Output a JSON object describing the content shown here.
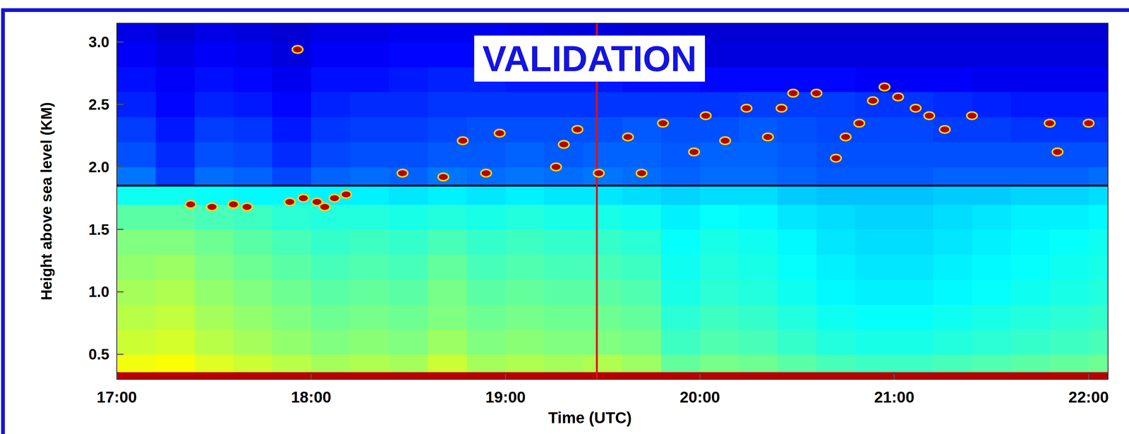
{
  "chart_data": {
    "type": "heatmap",
    "x_label": "Time (UTC)",
    "y_label": "Height above sea level (KM)",
    "xlim": [
      17,
      22.1
    ],
    "ylim": [
      0.3,
      3.15
    ],
    "xticks": [
      {
        "value": 17,
        "label": "17:00"
      },
      {
        "value": 18,
        "label": "18:00"
      },
      {
        "value": 19,
        "label": "19:00"
      },
      {
        "value": 20,
        "label": "20:00"
      },
      {
        "value": 21,
        "label": "21:00"
      },
      {
        "value": 22,
        "label": "22:00"
      }
    ],
    "yticks": [
      0.5,
      {
        "value": 1,
        "label": "1.0"
      },
      1.5,
      {
        "value": 2,
        "label": "2.0"
      },
      2.5,
      {
        "value": 3,
        "label": "3.0"
      }
    ],
    "color_range": [
      0.6,
      11.4
    ],
    "x_edges": [
      17.0,
      17.2,
      17.4,
      17.6,
      17.8,
      18.0,
      18.2,
      18.4,
      18.6,
      18.8,
      19.0,
      19.2,
      19.4,
      19.6,
      19.8,
      20.0,
      20.2,
      20.4,
      20.6,
      20.8,
      21.0,
      21.2,
      21.4,
      21.6,
      21.8,
      22.0,
      22.2
    ],
    "y_edges": [
      0.3,
      0.36,
      0.5,
      0.7,
      0.9,
      1.1,
      1.3,
      1.5,
      1.7,
      1.85,
      2.0,
      2.2,
      2.4,
      2.6,
      2.8,
      3.0,
      3.2
    ],
    "cells": [
      [
        10.8,
        10.8,
        10.8,
        10.8,
        10.8,
        10.8,
        10.8,
        10.8,
        10.8,
        10.8,
        10.8,
        10.8,
        10.8,
        10.8,
        10.8,
        10.8,
        10.8,
        10.8,
        10.8,
        10.8,
        10.8,
        10.8,
        10.8,
        10.8,
        10.8,
        10.8
      ],
      [
        7.2,
        7.3,
        7.0,
        6.8,
        6.6,
        6.4,
        6.5,
        6.4,
        6.8,
        6.4,
        6.5,
        6.4,
        6.5,
        6.3,
        5.7,
        5.9,
        5.8,
        5.6,
        5.4,
        5.3,
        5.3,
        5.4,
        5.5,
        5.6,
        5.7,
        5.8
      ],
      [
        6.8,
        6.9,
        6.6,
        6.4,
        6.2,
        6.0,
        6.1,
        6.0,
        6.3,
        6.0,
        6.1,
        6.0,
        6.0,
        5.9,
        5.3,
        5.5,
        5.4,
        5.2,
        5.0,
        4.9,
        4.9,
        5.0,
        5.1,
        5.2,
        5.3,
        5.4
      ],
      [
        6.6,
        6.7,
        6.4,
        6.2,
        6.0,
        5.8,
        5.9,
        5.8,
        6.0,
        5.8,
        5.9,
        5.8,
        5.8,
        5.7,
        5.1,
        5.3,
        5.2,
        5.0,
        4.8,
        4.7,
        4.7,
        4.8,
        4.9,
        5.0,
        5.1,
        5.2
      ],
      [
        6.4,
        6.5,
        6.2,
        6.0,
        5.8,
        5.6,
        5.7,
        5.6,
        5.9,
        5.6,
        5.7,
        5.6,
        5.6,
        5.5,
        4.9,
        5.1,
        5.0,
        4.8,
        4.6,
        4.5,
        4.5,
        4.6,
        4.7,
        4.8,
        4.9,
        5.0
      ],
      [
        6.2,
        6.3,
        6.0,
        5.8,
        5.6,
        5.4,
        5.5,
        5.4,
        5.7,
        5.4,
        5.5,
        5.4,
        5.4,
        5.3,
        4.8,
        5.0,
        4.9,
        4.7,
        4.5,
        4.4,
        4.4,
        4.5,
        4.6,
        4.7,
        4.8,
        4.9
      ],
      [
        6.0,
        6.0,
        5.8,
        5.6,
        5.4,
        5.2,
        5.3,
        5.2,
        5.4,
        5.2,
        5.3,
        5.2,
        5.2,
        5.1,
        4.7,
        4.9,
        4.8,
        4.6,
        4.4,
        4.3,
        4.3,
        4.4,
        4.5,
        4.6,
        4.7,
        4.8
      ],
      [
        5.6,
        5.6,
        5.4,
        5.3,
        5.1,
        5.0,
        5.0,
        4.9,
        5.0,
        4.9,
        5.0,
        4.9,
        4.9,
        4.8,
        4.5,
        4.7,
        4.6,
        4.4,
        4.3,
        4.2,
        4.2,
        4.3,
        4.4,
        4.5,
        4.5,
        4.6
      ],
      [
        4.8,
        4.8,
        4.7,
        4.6,
        4.6,
        4.5,
        4.5,
        4.4,
        4.5,
        4.4,
        4.5,
        4.4,
        4.4,
        4.3,
        4.2,
        4.3,
        4.3,
        4.1,
        4.0,
        4.0,
        4.0,
        4.1,
        4.1,
        4.2,
        4.2,
        4.3
      ],
      [
        3.2,
        2.6,
        3.1,
        3.0,
        2.7,
        3.0,
        3.1,
        3.0,
        3.2,
        3.1,
        3.2,
        3.1,
        3.2,
        3.1,
        3.0,
        3.1,
        3.1,
        3.0,
        2.9,
        2.9,
        2.9,
        3.0,
        3.0,
        3.0,
        3.0,
        3.1
      ],
      [
        2.8,
        2.4,
        2.8,
        2.7,
        2.4,
        2.7,
        2.8,
        2.8,
        2.9,
        2.9,
        3.0,
        2.9,
        3.0,
        3.0,
        2.9,
        3.0,
        3.0,
        2.9,
        2.8,
        2.8,
        2.8,
        2.8,
        2.8,
        2.8,
        2.8,
        2.8
      ],
      [
        2.6,
        2.2,
        2.6,
        2.5,
        2.2,
        2.5,
        2.6,
        2.6,
        2.7,
        2.8,
        2.8,
        2.8,
        2.8,
        2.9,
        2.8,
        2.8,
        2.9,
        2.8,
        2.7,
        2.7,
        2.7,
        2.6,
        2.6,
        2.5,
        2.5,
        2.5
      ],
      [
        2.3,
        2.0,
        2.3,
        2.2,
        2.0,
        2.3,
        2.4,
        2.4,
        2.5,
        2.5,
        2.5,
        2.5,
        2.5,
        2.5,
        2.5,
        2.5,
        2.6,
        2.6,
        2.6,
        2.5,
        2.5,
        2.4,
        2.3,
        2.2,
        2.2,
        2.2
      ],
      [
        2.1,
        1.9,
        2.1,
        2.0,
        1.8,
        2.1,
        2.1,
        2.2,
        2.3,
        2.3,
        2.2,
        2.2,
        2.2,
        2.1,
        2.1,
        2.0,
        2.0,
        2.0,
        2.0,
        1.9,
        1.9,
        1.9,
        1.8,
        1.8,
        1.8,
        1.8
      ],
      [
        1.9,
        1.7,
        1.9,
        1.8,
        1.6,
        1.9,
        1.9,
        2.0,
        2.0,
        2.0,
        1.9,
        1.8,
        1.8,
        1.7,
        1.6,
        1.6,
        1.6,
        1.6,
        1.6,
        1.6,
        1.6,
        1.6,
        1.6,
        1.6,
        1.6,
        1.6
      ],
      [
        1.7,
        1.5,
        1.7,
        1.6,
        1.5,
        1.7,
        1.7,
        1.8,
        1.8,
        1.8,
        1.7,
        1.6,
        1.6,
        1.5,
        1.5,
        1.5,
        1.5,
        1.5,
        1.5,
        1.5,
        1.5,
        1.5,
        1.5,
        1.5,
        1.5,
        1.5
      ]
    ],
    "clouds": {
      "color": "#b00000",
      "x": [
        17.38,
        17.49,
        17.6,
        17.67,
        17.89,
        17.96,
        18.03,
        18.07,
        18.12,
        18.18,
        17.93,
        18.47,
        18.68,
        18.78,
        18.9,
        18.97,
        19.26,
        19.3,
        19.37,
        19.48,
        19.63,
        19.7,
        19.81,
        19.97,
        20.03,
        20.13,
        20.24,
        20.35,
        20.42,
        20.48,
        20.6,
        20.7,
        20.75,
        20.82,
        20.89,
        20.95,
        21.02,
        21.11,
        21.18,
        21.26,
        21.4,
        21.8,
        21.84,
        22.0
      ],
      "y": [
        1.7,
        1.68,
        1.7,
        1.68,
        1.72,
        1.75,
        1.72,
        1.68,
        1.75,
        1.78,
        2.94,
        1.95,
        1.92,
        2.21,
        1.95,
        2.27,
        2.0,
        2.18,
        2.3,
        1.95,
        2.24,
        1.95,
        2.35,
        2.12,
        2.41,
        2.21,
        2.47,
        2.24,
        2.47,
        2.59,
        2.59,
        2.07,
        2.24,
        2.35,
        2.53,
        2.64,
        2.56,
        2.47,
        2.41,
        2.3,
        2.41,
        2.35,
        2.12,
        2.35
      ]
    },
    "reference_lines": [
      {
        "axis": "y",
        "value": 1.85,
        "color": "#000000"
      },
      {
        "axis": "x",
        "value": 19.47,
        "color": "#e01010"
      }
    ],
    "annotations": [
      {
        "text": "VALIDATION"
      }
    ]
  }
}
